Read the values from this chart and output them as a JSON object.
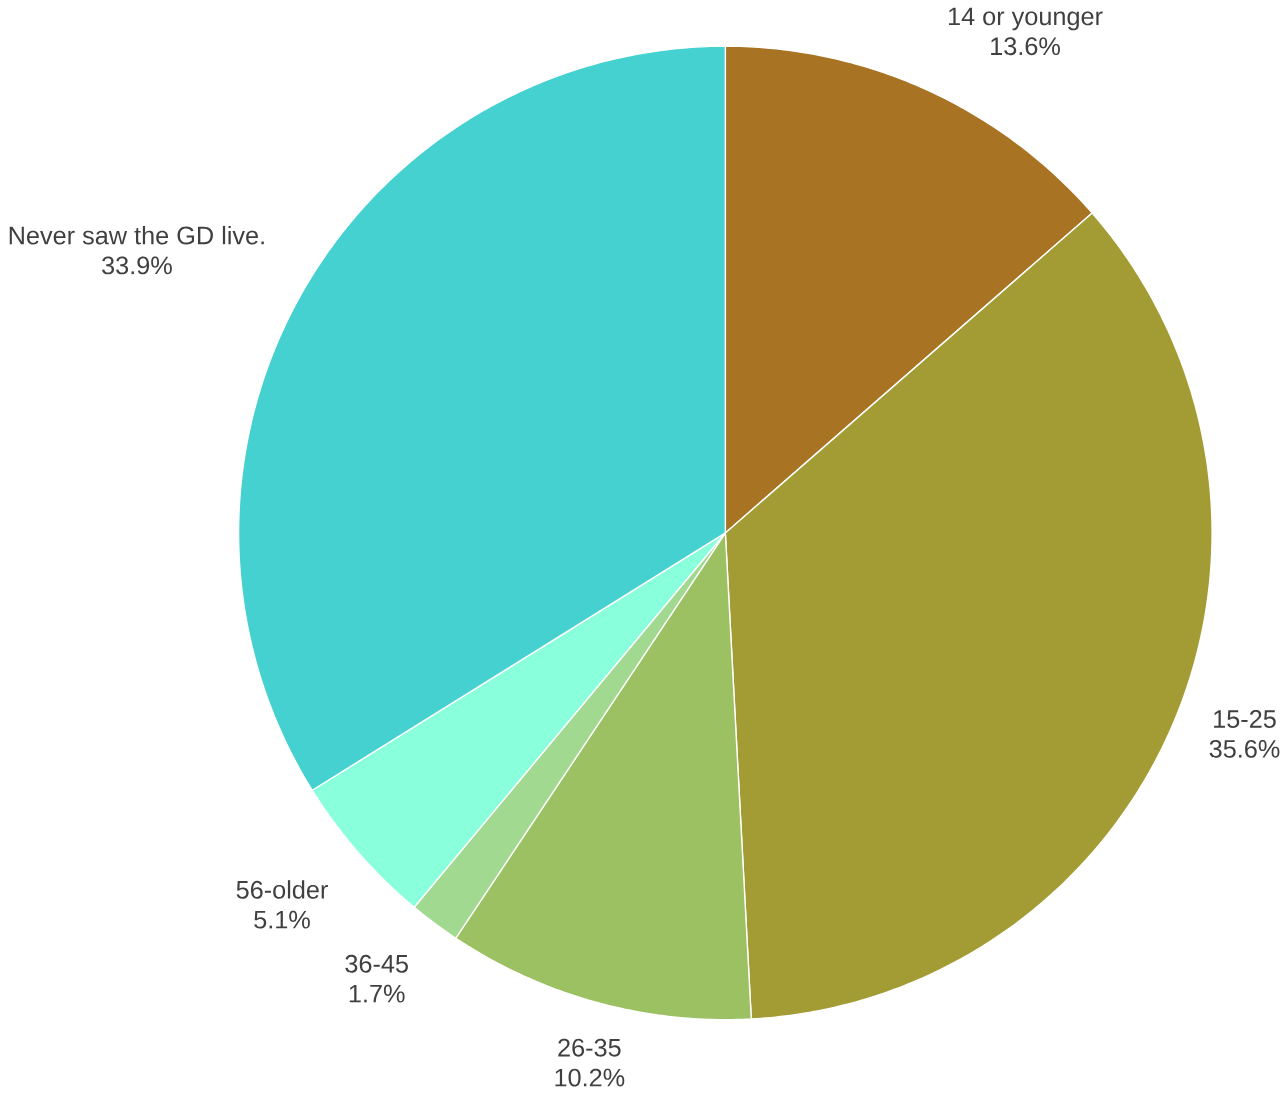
{
  "chart_data": {
    "type": "pie",
    "categories": [
      "14 or younger",
      "15-25",
      "26-35",
      "36-45",
      "56-older",
      "Never saw the GD live."
    ],
    "values": [
      13.6,
      35.6,
      10.2,
      1.7,
      5.1,
      33.9
    ],
    "colors": [
      "#a87424",
      "#a39c35",
      "#9bc163",
      "#a0d98f",
      "#8affdb",
      "#45d1cf"
    ],
    "value_labels": [
      "13.6%",
      "35.6%",
      "10.2%",
      "1.7%",
      "5.1%",
      "33.9%"
    ]
  }
}
